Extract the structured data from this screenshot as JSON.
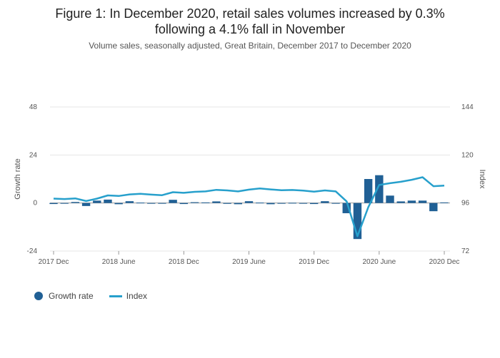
{
  "chart_data": {
    "type": "bar+line",
    "title": "Figure 1: In December 2020, retail sales volumes increased by 0.3%\nfollowing a 4.1% fall in November",
    "subtitle": "Volume sales, seasonally adjusted, Great Britain, December 2017 to December 2020",
    "ylabel_left": "Growth rate",
    "ylabel_right": "Index",
    "ylim_left": [
      -24,
      48
    ],
    "ylim_right": [
      72,
      144
    ],
    "yticks_left": [
      "-24",
      "0",
      "24",
      "48"
    ],
    "yticks_right": [
      "72",
      "96",
      "120",
      "144"
    ],
    "xtick_labels": [
      {
        "index": 0,
        "label": "2017 Dec"
      },
      {
        "index": 6,
        "label": "2018 June"
      },
      {
        "index": 12,
        "label": "2018 Dec"
      },
      {
        "index": 18,
        "label": "2019 June"
      },
      {
        "index": 24,
        "label": "2019 Dec"
      },
      {
        "index": 30,
        "label": "2020 June"
      },
      {
        "index": 36,
        "label": "2020 Dec"
      }
    ],
    "categories": [
      "2017 Dec",
      "2018 Jan",
      "2018 Feb",
      "2018 Mar",
      "2018 Apr",
      "2018 May",
      "2018 Jun",
      "2018 Jul",
      "2018 Aug",
      "2018 Sep",
      "2018 Oct",
      "2018 Nov",
      "2018 Dec",
      "2019 Jan",
      "2019 Feb",
      "2019 Mar",
      "2019 Apr",
      "2019 May",
      "2019 Jun",
      "2019 Jul",
      "2019 Aug",
      "2019 Sep",
      "2019 Oct",
      "2019 Nov",
      "2019 Dec",
      "2020 Jan",
      "2020 Feb",
      "2020 Mar",
      "2020 Apr",
      "2020 May",
      "2020 Jun",
      "2020 Jul",
      "2020 Aug",
      "2020 Sep",
      "2020 Oct",
      "2020 Nov",
      "2020 Dec"
    ],
    "series": [
      {
        "name": "Growth rate",
        "type": "bar",
        "axis": "left",
        "color": "#206095",
        "values": [
          -0.5,
          0.0,
          0.5,
          -1.5,
          1.2,
          1.7,
          -0.6,
          0.9,
          0.2,
          -0.3,
          -0.3,
          1.6,
          -0.5,
          0.4,
          0.3,
          0.8,
          -0.4,
          -0.6,
          0.9,
          0.2,
          -0.6,
          -0.2,
          0.1,
          -0.2,
          -0.5,
          0.9,
          -0.3,
          -5.1,
          -18.0,
          12.0,
          13.9,
          3.7,
          0.8,
          1.2,
          1.2,
          -4.1,
          0.3
        ]
      },
      {
        "name": "Index",
        "type": "line",
        "axis": "right",
        "color": "#27A0CC",
        "values": [
          98.2,
          98.0,
          98.3,
          97.0,
          98.2,
          99.8,
          99.5,
          100.3,
          100.6,
          100.2,
          99.9,
          101.4,
          101.1,
          101.6,
          101.8,
          102.6,
          102.3,
          101.8,
          102.7,
          103.3,
          102.8,
          102.4,
          102.5,
          102.2,
          101.7,
          102.3,
          101.8,
          96.8,
          79.4,
          93.9,
          105.0,
          105.9,
          106.6,
          107.6,
          108.9,
          104.4,
          104.7
        ]
      }
    ],
    "legend_position": "bottom-left",
    "grid": true
  }
}
